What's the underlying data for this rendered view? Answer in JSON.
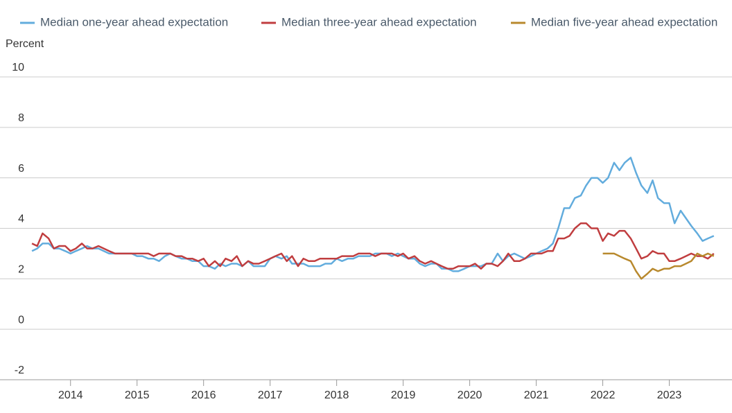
{
  "chart_data": {
    "type": "line",
    "ylabel": "Percent",
    "x": [
      2013.42,
      2013.5,
      2013.58,
      2013.67,
      2013.75,
      2013.83,
      2013.92,
      2014,
      2014.08,
      2014.17,
      2014.25,
      2014.33,
      2014.42,
      2014.5,
      2014.58,
      2014.67,
      2014.75,
      2014.83,
      2014.92,
      2015,
      2015.08,
      2015.17,
      2015.25,
      2015.33,
      2015.42,
      2015.5,
      2015.58,
      2015.67,
      2015.75,
      2015.83,
      2015.92,
      2016,
      2016.08,
      2016.17,
      2016.25,
      2016.33,
      2016.42,
      2016.5,
      2016.58,
      2016.67,
      2016.75,
      2016.83,
      2016.92,
      2017,
      2017.08,
      2017.17,
      2017.25,
      2017.33,
      2017.42,
      2017.5,
      2017.58,
      2017.67,
      2017.75,
      2017.83,
      2017.92,
      2018,
      2018.08,
      2018.17,
      2018.25,
      2018.33,
      2018.42,
      2018.5,
      2018.58,
      2018.67,
      2018.75,
      2018.83,
      2018.92,
      2019,
      2019.08,
      2019.17,
      2019.25,
      2019.33,
      2019.42,
      2019.5,
      2019.58,
      2019.67,
      2019.75,
      2019.83,
      2019.92,
      2020,
      2020.08,
      2020.17,
      2020.25,
      2020.33,
      2020.42,
      2020.5,
      2020.58,
      2020.67,
      2020.75,
      2020.83,
      2020.92,
      2021,
      2021.08,
      2021.17,
      2021.25,
      2021.33,
      2021.42,
      2021.5,
      2021.58,
      2021.67,
      2021.75,
      2021.83,
      2021.92,
      2022,
      2022.08,
      2022.17,
      2022.25,
      2022.33,
      2022.42,
      2022.5,
      2022.58,
      2022.67,
      2022.75,
      2022.83,
      2022.92,
      2023,
      2023.08,
      2023.17,
      2023.25,
      2023.33,
      2023.42,
      2023.5,
      2023.58,
      2023.67
    ],
    "series": [
      {
        "name": "Median one-year ahead expectation",
        "color": "#62acdd",
        "values": [
          3.1,
          3.2,
          3.4,
          3.4,
          3.2,
          3.2,
          3.1,
          3.0,
          3.1,
          3.2,
          3.3,
          3.2,
          3.2,
          3.1,
          3.0,
          3.0,
          3.0,
          3.0,
          3.0,
          2.9,
          2.9,
          2.8,
          2.8,
          2.7,
          2.9,
          3.0,
          2.9,
          2.8,
          2.8,
          2.7,
          2.7,
          2.5,
          2.5,
          2.4,
          2.6,
          2.5,
          2.6,
          2.6,
          2.5,
          2.7,
          2.5,
          2.5,
          2.5,
          2.8,
          2.9,
          2.8,
          2.9,
          2.6,
          2.6,
          2.6,
          2.5,
          2.5,
          2.5,
          2.6,
          2.6,
          2.8,
          2.7,
          2.8,
          2.8,
          2.9,
          2.9,
          2.9,
          3.0,
          3.0,
          3.0,
          2.9,
          3.0,
          2.9,
          2.8,
          2.8,
          2.6,
          2.5,
          2.6,
          2.6,
          2.4,
          2.4,
          2.3,
          2.3,
          2.4,
          2.5,
          2.5,
          2.5,
          2.6,
          2.6,
          3.0,
          2.7,
          2.9,
          3.0,
          2.9,
          2.8,
          2.9,
          3.0,
          3.1,
          3.2,
          3.4,
          4.0,
          4.8,
          4.8,
          5.2,
          5.3,
          5.7,
          6.0,
          6.0,
          5.8,
          6.0,
          6.6,
          6.3,
          6.6,
          6.8,
          6.2,
          5.7,
          5.4,
          5.9,
          5.2,
          5.0,
          5.0,
          4.2,
          4.7,
          4.4,
          4.1,
          3.8,
          3.5,
          3.6,
          3.7
        ]
      },
      {
        "name": "Median three-year ahead expectation",
        "color": "#c03d3f",
        "values": [
          3.4,
          3.3,
          3.8,
          3.6,
          3.2,
          3.3,
          3.3,
          3.1,
          3.2,
          3.4,
          3.2,
          3.2,
          3.3,
          3.2,
          3.1,
          3.0,
          3.0,
          3.0,
          3.0,
          3.0,
          3.0,
          3.0,
          2.9,
          3.0,
          3.0,
          3.0,
          2.9,
          2.9,
          2.8,
          2.8,
          2.7,
          2.8,
          2.5,
          2.7,
          2.5,
          2.8,
          2.7,
          2.9,
          2.5,
          2.7,
          2.6,
          2.6,
          2.7,
          2.8,
          2.9,
          3.0,
          2.7,
          2.9,
          2.5,
          2.8,
          2.7,
          2.7,
          2.8,
          2.8,
          2.8,
          2.8,
          2.9,
          2.9,
          2.9,
          3.0,
          3.0,
          3.0,
          2.9,
          3.0,
          3.0,
          3.0,
          2.9,
          3.0,
          2.8,
          2.9,
          2.7,
          2.6,
          2.7,
          2.6,
          2.5,
          2.4,
          2.4,
          2.5,
          2.5,
          2.5,
          2.6,
          2.4,
          2.6,
          2.6,
          2.5,
          2.7,
          3.0,
          2.7,
          2.7,
          2.8,
          3.0,
          3.0,
          3.0,
          3.1,
          3.1,
          3.6,
          3.6,
          3.7,
          4.0,
          4.2,
          4.2,
          4.0,
          4.0,
          3.5,
          3.8,
          3.7,
          3.9,
          3.9,
          3.6,
          3.2,
          2.8,
          2.9,
          3.1,
          3.0,
          3.0,
          2.7,
          2.7,
          2.8,
          2.9,
          3.0,
          2.9,
          2.9,
          2.8,
          3.0
        ]
      },
      {
        "name": "Median five-year ahead expectation",
        "color": "#b8892d",
        "values": [
          null,
          null,
          null,
          null,
          null,
          null,
          null,
          null,
          null,
          null,
          null,
          null,
          null,
          null,
          null,
          null,
          null,
          null,
          null,
          null,
          null,
          null,
          null,
          null,
          null,
          null,
          null,
          null,
          null,
          null,
          null,
          null,
          null,
          null,
          null,
          null,
          null,
          null,
          null,
          null,
          null,
          null,
          null,
          null,
          null,
          null,
          null,
          null,
          null,
          null,
          null,
          null,
          null,
          null,
          null,
          null,
          null,
          null,
          null,
          null,
          null,
          null,
          null,
          null,
          null,
          null,
          null,
          null,
          null,
          null,
          null,
          null,
          null,
          null,
          null,
          null,
          null,
          null,
          null,
          null,
          null,
          null,
          null,
          null,
          null,
          null,
          null,
          null,
          null,
          null,
          null,
          null,
          null,
          null,
          null,
          null,
          null,
          null,
          null,
          null,
          null,
          null,
          null,
          3.0,
          3.0,
          3.0,
          2.9,
          2.8,
          2.7,
          2.3,
          2.0,
          2.2,
          2.4,
          2.3,
          2.4,
          2.4,
          2.5,
          2.5,
          2.6,
          2.7,
          3.0,
          2.9,
          3.0,
          2.9
        ]
      }
    ],
    "xlim": [
      2012.94,
      2023.88
    ],
    "xticks": [
      2014,
      2015,
      2016,
      2017,
      2018,
      2019,
      2020,
      2021,
      2022,
      2023
    ],
    "ylim": [
      -2,
      10
    ],
    "yticks": [
      -2,
      0,
      2,
      4,
      6,
      8,
      10
    ],
    "grid": true,
    "legend": "top"
  }
}
